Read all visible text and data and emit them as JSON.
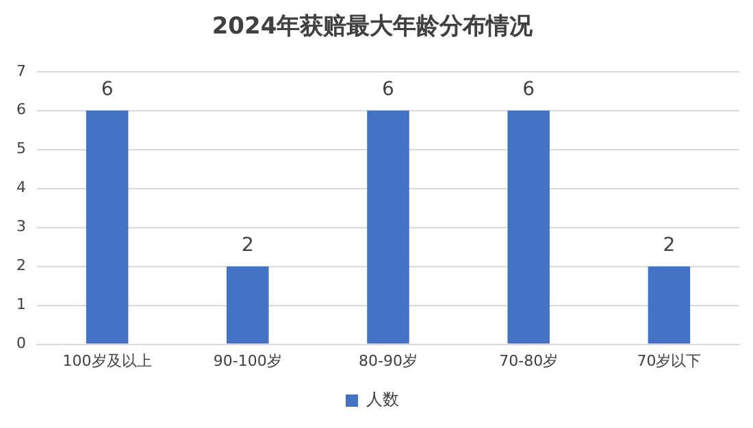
{
  "chart_data": {
    "type": "bar",
    "title": "2024年获赔最大年龄分布情况",
    "categories": [
      "100岁及以上",
      "90-100岁",
      "80-90岁",
      "70-80岁",
      "70岁以下"
    ],
    "series": [
      {
        "name": "人数",
        "color": "#4472c4",
        "values": [
          6,
          2,
          6,
          6,
          2
        ]
      }
    ],
    "ylim": [
      0,
      7
    ],
    "yticks": [
      0,
      1,
      2,
      3,
      4,
      5,
      6,
      7
    ],
    "grid": "y",
    "legend": "bottom",
    "data_labels": true
  }
}
